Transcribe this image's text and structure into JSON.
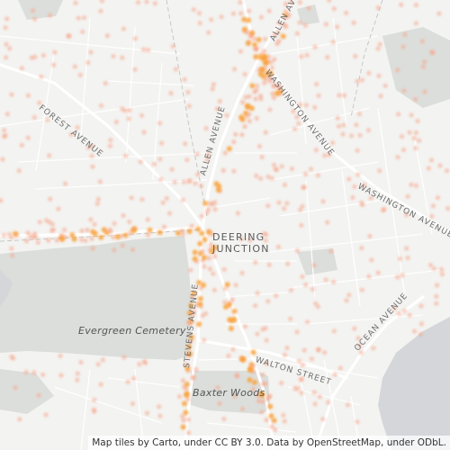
{
  "map": {
    "place_label": [
      "DEERING",
      "JUNCTION"
    ],
    "street_labels": {
      "forest_avenue": "FOREST AVENUE",
      "allen_avenue_upper": "ALLEN AVENUE",
      "allen_avenue_mid": "ALLEN AVENUE",
      "washington_avenue_north": "WASHINGTON AVENUE",
      "washington_avenue_south": "WASHINGTON AVENUE",
      "stevens_avenue": "STEVENS AVENUE",
      "ocean_avenue": "OCEAN AVENUE",
      "walton_street": "WALTON STREET"
    },
    "area_labels": {
      "evergreen_cemetery": "Evergreen Cemetery",
      "baxter_woods": "Baxter Woods"
    },
    "attribution": "Map tiles by Carto, under CC BY 3.0. Data by OpenStreetMap, under ODbL.",
    "colors": {
      "background": "#f3f3f1",
      "park": "#dcdedb",
      "water": "#d4d6da",
      "road": "#ffffff",
      "dot_light": "#f6a58a",
      "dot_strong": "#f9a33c"
    }
  }
}
